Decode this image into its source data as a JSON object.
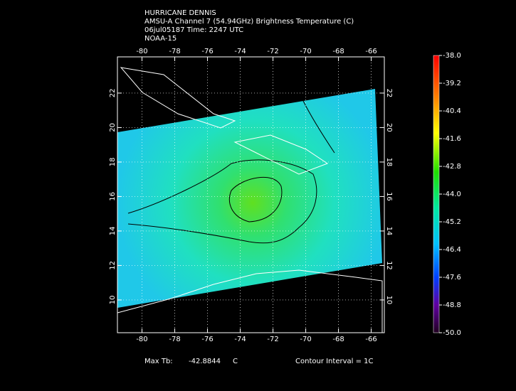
{
  "header": {
    "lines": [
      "HURRICANE DENNIS",
      "AMSU-A Channel 7 (54.94GHz) Brightness Temperature (C)",
      "06jul05187 Time: 2247 UTC",
      "NOAA-15"
    ]
  },
  "map": {
    "xlim": [
      -81.5,
      -65.2
    ],
    "ylim": [
      8.1,
      24.1
    ],
    "xticks": [
      -80,
      -78,
      -76,
      -74,
      -72,
      -70,
      -68,
      -66
    ],
    "yticks": [
      10,
      12,
      14,
      16,
      18,
      20,
      22
    ]
  },
  "colorbar": {
    "lim": [
      -50,
      -38
    ],
    "ticks": [
      {
        "value": -38,
        "label": "-38.0"
      },
      -39.2,
      -40.4,
      -41.6,
      -42.8,
      {
        "value": -44,
        "label": "-44.0"
      },
      -45.2,
      -46.4,
      -47.6,
      -48.8,
      {
        "value": -50,
        "label": "-50.0"
      }
    ]
  },
  "footer": {
    "max_label": "Max Tb:",
    "max_value": -42.8844,
    "unit": "C",
    "contour": "Contour Interval = 1C"
  }
}
